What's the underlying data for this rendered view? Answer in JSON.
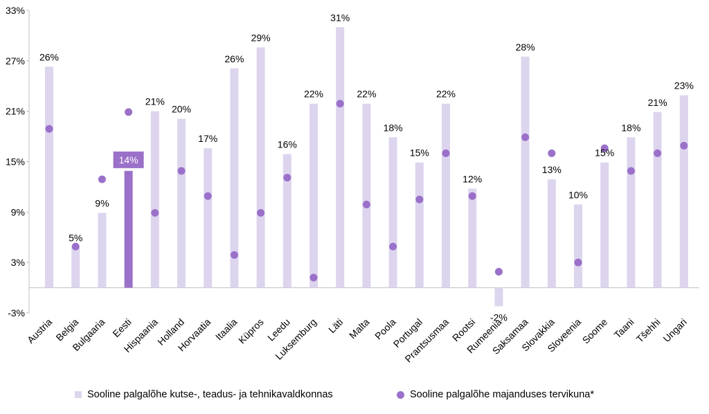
{
  "chart_data": {
    "type": "bar",
    "categories": [
      "Austria",
      "Belgia",
      "Bulgaaria",
      "Eesti",
      "Hispaania",
      "Holland",
      "Horvaatia",
      "Itaalia",
      "Küpros",
      "Leedu",
      "Luksemburg",
      "Läti",
      "Malta",
      "Poola",
      "Portugal",
      "Prantsusmaa",
      "Rootsi",
      "Rumeenia",
      "Saksamaa",
      "Slovakkia",
      "Sloveenia",
      "Soome",
      "Taani",
      "Tšehhi",
      "Ungari"
    ],
    "series": [
      {
        "name": "Sooline palgalõhe kutse-, teadus- ja tehnikavaldkonnas",
        "kind": "bar",
        "values": [
          26.3,
          4.8,
          8.9,
          13.9,
          21.0,
          20.1,
          16.6,
          26.1,
          28.6,
          15.9,
          21.9,
          31.0,
          21.9,
          17.9,
          14.9,
          21.9,
          11.8,
          -2.2,
          27.5,
          12.9,
          9.9,
          14.9,
          17.9,
          20.9,
          22.9
        ],
        "labels": [
          "26%",
          "5%",
          "9%",
          "14%",
          "21%",
          "20%",
          "17%",
          "26%",
          "29%",
          "16%",
          "22%",
          "31%",
          "22%",
          "18%",
          "15%",
          "22%",
          "12%",
          "-2%",
          "28%",
          "13%",
          "10%",
          "15%",
          "18%",
          "21%",
          "23%"
        ]
      },
      {
        "name": "Sooline palgalõhe majanduses tervikuna*",
        "kind": "dot",
        "values": [
          18.9,
          4.9,
          12.9,
          20.9,
          8.9,
          13.9,
          10.9,
          3.9,
          8.9,
          13.1,
          1.2,
          21.9,
          9.9,
          4.9,
          10.5,
          16.0,
          10.9,
          1.9,
          17.9,
          16.0,
          3.0,
          16.6,
          13.9,
          16.0,
          16.9
        ]
      }
    ],
    "highlight_category": "Eesti",
    "ylim": [
      -3,
      33
    ],
    "yticks": [
      "-3%",
      "3%",
      "9%",
      "15%",
      "21%",
      "27%",
      "33%"
    ],
    "ytick_values": [
      -3,
      3,
      9,
      15,
      21,
      27,
      33
    ],
    "legend_position": "bottom",
    "grid": false,
    "colors": {
      "bar": "#ddd5ee",
      "bar_highlight": "#9a70c9",
      "dot": "#9a70c9",
      "highlight_label_bg": "#9a70c9",
      "highlight_label_text": "#ffffff",
      "axis": "#bfbfbf"
    }
  },
  "legend": {
    "bar_label": "Sooline palgalõhe kutse-, teadus- ja tehnikavaldkonnas",
    "dot_label": "Sooline palgalõhe majanduses tervikuna*"
  }
}
